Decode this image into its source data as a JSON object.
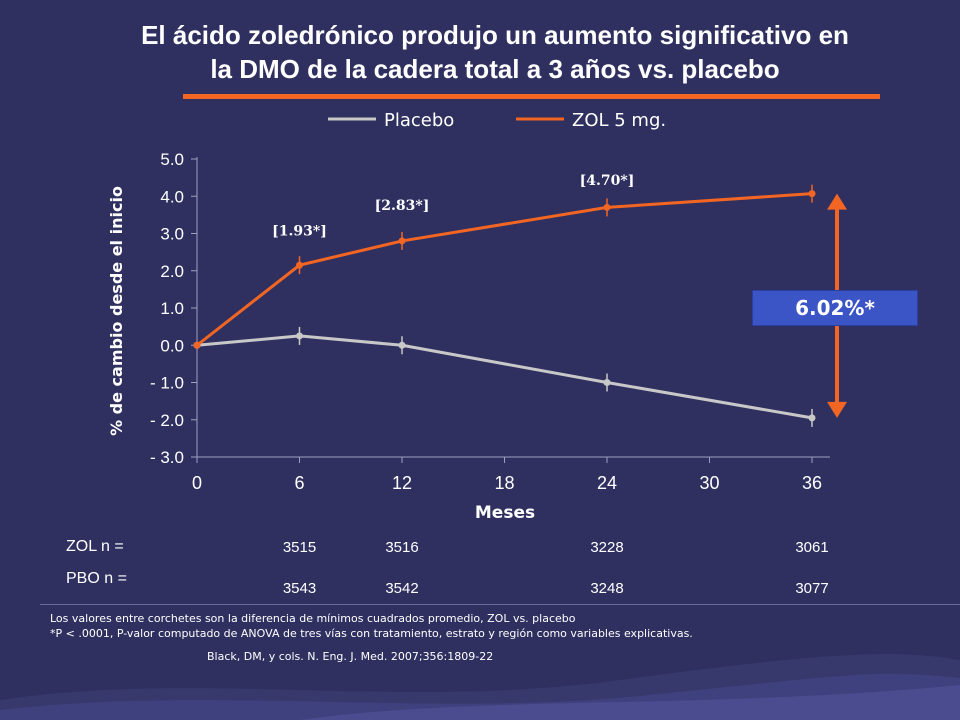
{
  "title": {
    "line1": "El ácido zoledrónico produjo un aumento significativo en",
    "line2": "la DMO de la cadera total a  3 años vs. placebo"
  },
  "colors": {
    "placebo": "#c8c8c8",
    "zol": "#f26522",
    "background": "#2f3060",
    "callout_bg": "#3b55c7"
  },
  "chart_data": {
    "type": "line",
    "xlabel": "Meses",
    "ylabel": "% de cambio desde el inicio",
    "xlim": [
      0,
      36
    ],
    "ylim": [
      -3.0,
      5.0
    ],
    "x_ticks": [
      "0",
      "6",
      "12",
      "18",
      "24",
      "30",
      "36"
    ],
    "y_ticks": [
      "5.0",
      "4.0",
      "3.0",
      "2.0",
      "1.0",
      "0.0",
      "- 1.0",
      "- 2.0",
      "- 3.0"
    ],
    "legend": [
      "Placebo",
      "ZOL 5 mg."
    ],
    "legend_position": "top",
    "series": [
      {
        "name": "Placebo",
        "x": [
          0,
          6,
          12,
          24,
          36
        ],
        "y": [
          0.0,
          0.25,
          0.0,
          -1.0,
          -1.95
        ]
      },
      {
        "name": "ZOL 5 mg.",
        "x": [
          0,
          6,
          12,
          24,
          36
        ],
        "y": [
          0.0,
          2.15,
          2.8,
          3.7,
          4.07
        ]
      }
    ],
    "annotations": [
      {
        "text": "[1.93*]",
        "x": 6,
        "y": 2.95
      },
      {
        "text": "[2.83*]",
        "x": 12,
        "y": 3.63
      },
      {
        "text": "[4.70*]",
        "x": 24,
        "y": 4.3
      }
    ],
    "callout": "6.02%*"
  },
  "table": {
    "zol_label": "ZOL n =",
    "pbo_label": "PBO n =",
    "zol_values": [
      {
        "month": 6,
        "n": "3515"
      },
      {
        "month": 12,
        "n": "3516"
      },
      {
        "month": 24,
        "n": "3228"
      },
      {
        "month": 36,
        "n": "3061"
      }
    ],
    "pbo_values": [
      {
        "month": 6,
        "n": "3543"
      },
      {
        "month": 12,
        "n": "3542"
      },
      {
        "month": 24,
        "n": "3248"
      },
      {
        "month": 36,
        "n": "3077"
      }
    ]
  },
  "footnotes": {
    "line1": "Los valores entre corchetes son la diferencia de mínimos cuadrados promedio, ZOL vs. placebo",
    "line2": "*P < .0001, P-valor computado de ANOVA de tres vías con tratamiento, estrato y región como variables explicativas.",
    "citation": "Black, DM, y cols.  N. Eng. J. Med. 2007;356:1809-22"
  }
}
